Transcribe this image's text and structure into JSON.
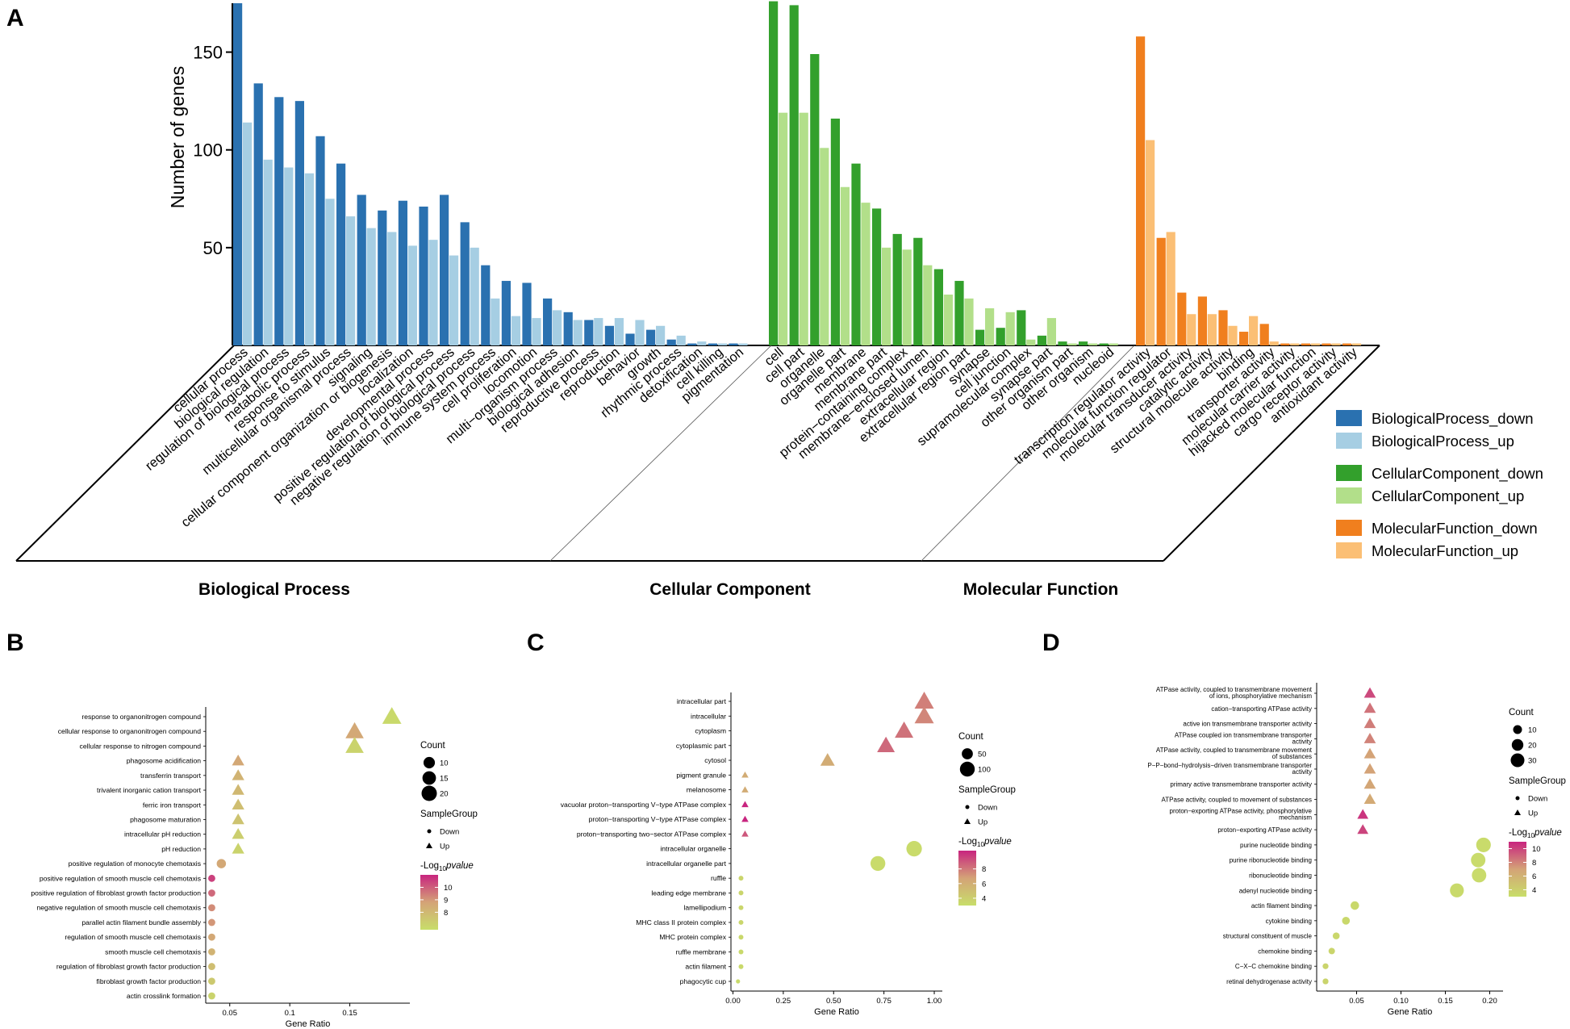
{
  "panel_labels": [
    "A",
    "B",
    "C",
    "D"
  ],
  "chart_data": [
    {
      "panel": "A",
      "type": "bar",
      "ylabel": "Number of genes",
      "yticks": [
        50,
        100,
        150
      ],
      "ylim": [
        0,
        175
      ],
      "groups": [
        {
          "name": "Biological Process",
          "down_series": "BiologicalProcess_down",
          "up_series": "BiologicalProcess_up",
          "down_color": "#2a71b0",
          "up_color": "#a6cee3",
          "categories": [
            "cellular process",
            "biological regulation",
            "regulation of biological process",
            "metabolic process",
            "response to stimulus",
            "multicellular organismal process",
            "signaling",
            "cellular component organization or biogenesis",
            "localization",
            "developmental process",
            "positive regulation of biological process",
            "negative regulation of biological process",
            "immune system process",
            "cell proliferation",
            "locomotion",
            "multi−organism process",
            "biological adhesion",
            "reproductive process",
            "reproduction",
            "behavior",
            "growth",
            "rhythmic process",
            "detoxification",
            "cell killing",
            "pigmentation"
          ],
          "down": [
            175,
            134,
            127,
            125,
            107,
            93,
            77,
            69,
            74,
            71,
            77,
            63,
            41,
            33,
            32,
            24,
            17,
            13,
            10,
            6,
            8,
            3,
            1,
            1,
            1
          ],
          "up": [
            114,
            95,
            91,
            88,
            75,
            66,
            60,
            58,
            51,
            54,
            46,
            50,
            24,
            15,
            14,
            18,
            13,
            14,
            14,
            13,
            10,
            5,
            2,
            1,
            1
          ]
        },
        {
          "name": "Cellular Component",
          "down_series": "CellularComponent_down",
          "up_series": "CellularComponent_up",
          "down_color": "#33a02c",
          "up_color": "#b2df8a",
          "categories": [
            "cell",
            "cell part",
            "organelle",
            "organelle part",
            "membrane",
            "membrane part",
            "protein−containing complex",
            "membrane−enclosed lumen",
            "extracellular region",
            "extracellular region part",
            "synapse",
            "cell junction",
            "supramolecular complex",
            "synapse part",
            "other organism part",
            "other organism",
            "nucleoid"
          ],
          "down": [
            176,
            174,
            149,
            116,
            93,
            70,
            57,
            55,
            39,
            33,
            8,
            9,
            18,
            5,
            2,
            2,
            1
          ],
          "up": [
            119,
            119,
            101,
            81,
            73,
            50,
            49,
            41,
            26,
            24,
            19,
            17,
            3,
            14,
            1,
            1,
            1
          ]
        },
        {
          "name": "Molecular Function",
          "down_series": "MolecularFunction_down",
          "up_series": "MolecularFunction_up",
          "down_color": "#f07f1e",
          "up_color": "#fbbf75",
          "categories": [
            "transcription regulator activity",
            "molecular function regulator",
            "molecular transducer activity",
            "catalytic activity",
            "structural molecule activity",
            "binding",
            "transporter activity",
            "molecular carrier activity",
            "hijacked molecular function",
            "cargo receptor activity",
            "antioxidant activity"
          ],
          "down": [
            158,
            55,
            27,
            25,
            18,
            7,
            11,
            1,
            1,
            1,
            1
          ],
          "up": [
            105,
            58,
            16,
            16,
            10,
            15,
            2,
            1,
            1,
            1,
            1
          ]
        }
      ]
    },
    {
      "panel": "B",
      "type": "scatter",
      "xlabel": "Gene Ratio",
      "xticks": [
        0.05,
        0.1,
        0.15
      ],
      "xlim": [
        0.03,
        0.2
      ],
      "terms": [
        {
          "label": "response to organonitrogen compound",
          "x": 0.185,
          "count": 20,
          "group": "Up",
          "p": 6.8
        },
        {
          "label": "cellular response to organonitrogen compound",
          "x": 0.154,
          "count": 18,
          "group": "Up",
          "p": 8.6
        },
        {
          "label": "cellular response to nitrogen compound",
          "x": 0.154,
          "count": 18,
          "group": "Up",
          "p": 7.0
        },
        {
          "label": "phagosome acidification",
          "x": 0.057,
          "count": 7,
          "group": "Up",
          "p": 8.6
        },
        {
          "label": "transferrin transport",
          "x": 0.057,
          "count": 7,
          "group": "Up",
          "p": 8.2
        },
        {
          "label": "trivalent inorganic cation transport",
          "x": 0.057,
          "count": 7,
          "group": "Up",
          "p": 8.0
        },
        {
          "label": "ferric iron transport",
          "x": 0.057,
          "count": 7,
          "group": "Up",
          "p": 7.8
        },
        {
          "label": "phagosome maturation",
          "x": 0.057,
          "count": 7,
          "group": "Up",
          "p": 7.6
        },
        {
          "label": "intracellular pH reduction",
          "x": 0.057,
          "count": 7,
          "group": "Up",
          "p": 7.2
        },
        {
          "label": "pH reduction",
          "x": 0.057,
          "count": 7,
          "group": "Up",
          "p": 7.0
        },
        {
          "label": "positive regulation of monocyte chemotaxis",
          "x": 0.043,
          "count": 6,
          "group": "Down",
          "p": 8.6
        },
        {
          "label": "positive regulation of smooth muscle cell chemotaxis",
          "x": 0.035,
          "count": 3,
          "group": "Down",
          "p": 10.5
        },
        {
          "label": "positive regulation of fibroblast growth factor production",
          "x": 0.035,
          "count": 3,
          "group": "Down",
          "p": 9.8
        },
        {
          "label": "negative regulation of smooth muscle cell chemotaxis",
          "x": 0.035,
          "count": 3,
          "group": "Down",
          "p": 9.2
        },
        {
          "label": "parallel actin filament bundle assembly",
          "x": 0.035,
          "count": 3,
          "group": "Down",
          "p": 9.0
        },
        {
          "label": "regulation of smooth muscle cell chemotaxis",
          "x": 0.035,
          "count": 3,
          "group": "Down",
          "p": 8.6
        },
        {
          "label": "smooth muscle cell chemotaxis",
          "x": 0.035,
          "count": 3,
          "group": "Down",
          "p": 8.2
        },
        {
          "label": "regulation of fibroblast growth factor production",
          "x": 0.035,
          "count": 3,
          "group": "Down",
          "p": 7.8
        },
        {
          "label": "fibroblast growth factor production",
          "x": 0.035,
          "count": 3,
          "group": "Down",
          "p": 7.4
        },
        {
          "label": "actin crosslink formation",
          "x": 0.035,
          "count": 3,
          "group": "Down",
          "p": 7.0
        }
      ],
      "legend": {
        "count_title": "Count",
        "count_values": [
          10,
          15,
          20
        ],
        "group_title": "SampleGroup",
        "groups": [
          "Down",
          "Up"
        ],
        "pval_title": "-Log10 pvalue",
        "pval_ticks": [
          8,
          9,
          10
        ],
        "pval_range": [
          6.6,
          11
        ]
      }
    },
    {
      "panel": "C",
      "type": "scatter",
      "xlabel": "Gene Ratio",
      "xticks": [
        0.0,
        0.25,
        0.5,
        0.75,
        1.0
      ],
      "tick_labels": [
        "0.00",
        "0.25",
        "0.50",
        "0.75",
        "1.00"
      ],
      "xlim": [
        -0.01,
        1.04
      ],
      "terms": [
        {
          "label": "intracellular part",
          "x": 0.95,
          "count": 110,
          "group": "Up",
          "p": 7.8
        },
        {
          "label": "intracellular",
          "x": 0.95,
          "count": 110,
          "group": "Up",
          "p": 7.6
        },
        {
          "label": "cytoplasm",
          "x": 0.85,
          "count": 100,
          "group": "Up",
          "p": 8.2
        },
        {
          "label": "cytoplasmic part",
          "x": 0.76,
          "count": 90,
          "group": "Up",
          "p": 8.5
        },
        {
          "label": "cytosol",
          "x": 0.47,
          "count": 55,
          "group": "Up",
          "p": 6.2
        },
        {
          "label": "pigment granule",
          "x": 0.06,
          "count": 8,
          "group": "Up",
          "p": 6.2
        },
        {
          "label": "melanosome",
          "x": 0.06,
          "count": 8,
          "group": "Up",
          "p": 6.2
        },
        {
          "label": "vacuolar proton−transporting V−type ATPase complex",
          "x": 0.06,
          "count": 8,
          "group": "Up",
          "p": 10.5
        },
        {
          "label": "proton−transporting V−type ATPase complex",
          "x": 0.06,
          "count": 8,
          "group": "Up",
          "p": 10.5
        },
        {
          "label": "proton−transporting two−sector ATPase complex",
          "x": 0.06,
          "count": 8,
          "group": "Up",
          "p": 9.0
        },
        {
          "label": "intracellular organelle",
          "x": 0.9,
          "count": 110,
          "group": "Down",
          "p": 3.2
        },
        {
          "label": "intracellular organelle part",
          "x": 0.72,
          "count": 100,
          "group": "Down",
          "p": 3.2
        },
        {
          "label": "ruffle",
          "x": 0.04,
          "count": 5,
          "group": "Down",
          "p": 3.6
        },
        {
          "label": "leading edge membrane",
          "x": 0.04,
          "count": 5,
          "group": "Down",
          "p": 3.6
        },
        {
          "label": "lamellipodium",
          "x": 0.04,
          "count": 5,
          "group": "Down",
          "p": 3.5
        },
        {
          "label": "MHC class II protein complex",
          "x": 0.04,
          "count": 5,
          "group": "Down",
          "p": 3.5
        },
        {
          "label": "MHC protein complex",
          "x": 0.04,
          "count": 5,
          "group": "Down",
          "p": 3.4
        },
        {
          "label": "ruffle membrane",
          "x": 0.04,
          "count": 5,
          "group": "Down",
          "p": 3.3
        },
        {
          "label": "actin filament",
          "x": 0.04,
          "count": 5,
          "group": "Down",
          "p": 3.3
        },
        {
          "label": "phagocytic cup",
          "x": 0.025,
          "count": 3,
          "group": "Down",
          "p": 3.2
        }
      ],
      "legend": {
        "count_title": "Count",
        "count_values": [
          50,
          100
        ],
        "group_title": "SampleGroup",
        "groups": [
          "Down",
          "Up"
        ],
        "pval_title": "-Log10 pvalue",
        "pval_ticks": [
          4,
          6,
          8
        ],
        "pval_range": [
          3.0,
          10.5
        ]
      }
    },
    {
      "panel": "D",
      "type": "scatter",
      "xlabel": "Gene Ratio",
      "xticks": [
        0.05,
        0.1,
        0.15,
        0.2
      ],
      "tick_labels": [
        "0.05",
        "0.10",
        "0.15",
        "0.20"
      ],
      "xlim": [
        0.005,
        0.215
      ],
      "terms": [
        {
          "label": "ATPase activity, coupled to transmembrane movement of ions, phosphorylative mechanism",
          "x": 0.065,
          "count": 12,
          "group": "Up",
          "p": 9.8
        },
        {
          "label": "cation−transporting ATPase activity",
          "x": 0.065,
          "count": 12,
          "group": "Up",
          "p": 8.5
        },
        {
          "label": "active ion transmembrane transporter activity",
          "x": 0.065,
          "count": 12,
          "group": "Up",
          "p": 8.2
        },
        {
          "label": "ATPase coupled ion transmembrane transporter activity",
          "x": 0.065,
          "count": 12,
          "group": "Up",
          "p": 8.0
        },
        {
          "label": "ATPase activity, coupled to transmembrane movement of substances",
          "x": 0.065,
          "count": 12,
          "group": "Up",
          "p": 7.0
        },
        {
          "label": "P−P−bond−hydrolysis−driven transmembrane transporter activity",
          "x": 0.065,
          "count": 12,
          "group": "Up",
          "p": 7.0
        },
        {
          "label": "primary active transmembrane transporter activity",
          "x": 0.065,
          "count": 12,
          "group": "Up",
          "p": 6.8
        },
        {
          "label": "ATPase activity, coupled to movement of substances",
          "x": 0.065,
          "count": 12,
          "group": "Up",
          "p": 6.5
        },
        {
          "label": "proton−exporting ATPase activity, phosphorylative mechanism",
          "x": 0.057,
          "count": 10,
          "group": "Up",
          "p": 10.5
        },
        {
          "label": "proton−exporting ATPase activity",
          "x": 0.057,
          "count": 10,
          "group": "Up",
          "p": 10.0
        },
        {
          "label": "purine nucleotide binding",
          "x": 0.193,
          "count": 35,
          "group": "Down",
          "p": 3.2
        },
        {
          "label": "purine ribonucleotide binding",
          "x": 0.187,
          "count": 34,
          "group": "Down",
          "p": 3.2
        },
        {
          "label": "ribonucleotide binding",
          "x": 0.188,
          "count": 34,
          "group": "Down",
          "p": 3.2
        },
        {
          "label": "adenyl nucleotide binding",
          "x": 0.163,
          "count": 31,
          "group": "Down",
          "p": 3.3
        },
        {
          "label": "actin filament binding",
          "x": 0.048,
          "count": 9,
          "group": "Down",
          "p": 3.4
        },
        {
          "label": "cytokine binding",
          "x": 0.038,
          "count": 7,
          "group": "Down",
          "p": 3.4
        },
        {
          "label": "structural constituent of muscle",
          "x": 0.027,
          "count": 5,
          "group": "Down",
          "p": 3.5
        },
        {
          "label": "chemokine binding",
          "x": 0.022,
          "count": 4,
          "group": "Down",
          "p": 3.6
        },
        {
          "label": "C−X−C chemokine binding",
          "x": 0.015,
          "count": 3,
          "group": "Down",
          "p": 3.7
        },
        {
          "label": "retinal dehydrogenase activity",
          "x": 0.015,
          "count": 3,
          "group": "Down",
          "p": 3.7
        }
      ],
      "legend": {
        "count_title": "Count",
        "count_values": [
          10,
          20,
          30
        ],
        "group_title": "SampleGroup",
        "groups": [
          "Down",
          "Up"
        ],
        "pval_title": "-Log10 pvalue",
        "pval_ticks": [
          4,
          6,
          8,
          10
        ],
        "pval_range": [
          3.0,
          11.0
        ]
      }
    }
  ],
  "colors": {
    "axis": "#000000",
    "grad_low": "#c8de6a",
    "grad_mid": "#d4a377",
    "grad_high": "#c8247f"
  }
}
